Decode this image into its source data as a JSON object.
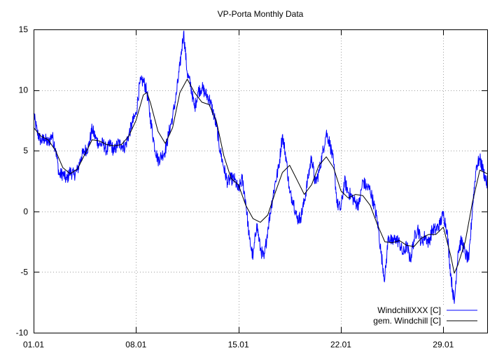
{
  "chart_data": {
    "type": "line",
    "title": "VP-Porta Monthly Data",
    "xlabel": "",
    "ylabel": "",
    "x_unit": "days since 01.01",
    "xlim": [
      0,
      31
    ],
    "ylim": [
      -10,
      15
    ],
    "x_ticks": [
      {
        "value": 0,
        "label": "01.01"
      },
      {
        "value": 7,
        "label": "08.01"
      },
      {
        "value": 14,
        "label": "15.01"
      },
      {
        "value": 21,
        "label": "22.01"
      },
      {
        "value": 28,
        "label": "29.01"
      }
    ],
    "y_ticks": [
      {
        "value": 15,
        "label": "15"
      },
      {
        "value": 10,
        "label": "10"
      },
      {
        "value": 5,
        "label": "5"
      },
      {
        "value": 0,
        "label": "0"
      },
      {
        "value": -5,
        "label": "-5"
      },
      {
        "value": -10,
        "label": "-10"
      }
    ],
    "grid": true,
    "legend_position": "bottom-right",
    "series": [
      {
        "name": "WindchillXXX [C]",
        "color": "#0000ff",
        "points": [
          [
            0,
            8.0
          ],
          [
            0.25,
            6.5
          ],
          [
            0.5,
            5.8
          ],
          [
            0.75,
            6.0
          ],
          [
            1.0,
            5.6
          ],
          [
            1.25,
            6.3
          ],
          [
            1.5,
            5.2
          ],
          [
            1.75,
            3.0
          ],
          [
            2.0,
            3.1
          ],
          [
            2.25,
            2.6
          ],
          [
            2.5,
            3.3
          ],
          [
            2.75,
            3.0
          ],
          [
            3.0,
            3.4
          ],
          [
            3.25,
            4.5
          ],
          [
            3.5,
            5.0
          ],
          [
            3.75,
            5.3
          ],
          [
            4.0,
            6.8
          ],
          [
            4.25,
            6.0
          ],
          [
            4.5,
            5.5
          ],
          [
            4.75,
            5.6
          ],
          [
            5.0,
            5.0
          ],
          [
            5.25,
            5.6
          ],
          [
            5.5,
            4.9
          ],
          [
            5.75,
            5.6
          ],
          [
            6.0,
            5.5
          ],
          [
            6.25,
            5.3
          ],
          [
            6.5,
            6.3
          ],
          [
            6.75,
            7.3
          ],
          [
            7.0,
            8.0
          ],
          [
            7.25,
            10.5
          ],
          [
            7.5,
            10.8
          ],
          [
            7.75,
            9.8
          ],
          [
            8.0,
            7.5
          ],
          [
            8.25,
            5.5
          ],
          [
            8.5,
            4.2
          ],
          [
            8.75,
            4.6
          ],
          [
            9.0,
            5.0
          ],
          [
            9.25,
            6.5
          ],
          [
            9.5,
            7.8
          ],
          [
            9.75,
            9.6
          ],
          [
            10.0,
            12.0
          ],
          [
            10.25,
            14.8
          ],
          [
            10.5,
            11.4
          ],
          [
            10.75,
            10.3
          ],
          [
            11.0,
            8.5
          ],
          [
            11.25,
            9.9
          ],
          [
            11.5,
            10.2
          ],
          [
            11.75,
            9.7
          ],
          [
            12.0,
            9.3
          ],
          [
            12.25,
            8.3
          ],
          [
            12.5,
            7.0
          ],
          [
            12.75,
            5.0
          ],
          [
            13.0,
            3.6
          ],
          [
            13.25,
            2.4
          ],
          [
            13.5,
            2.7
          ],
          [
            13.75,
            2.6
          ],
          [
            14.0,
            1.7
          ],
          [
            14.25,
            2.7
          ],
          [
            14.5,
            0.8
          ],
          [
            14.75,
            -2.3
          ],
          [
            15.0,
            -3.8
          ],
          [
            15.25,
            -1.0
          ],
          [
            15.5,
            -3.1
          ],
          [
            15.75,
            -3.9
          ],
          [
            16.0,
            -1.5
          ],
          [
            16.25,
            0.5
          ],
          [
            16.5,
            2.3
          ],
          [
            16.75,
            3.6
          ],
          [
            17.0,
            6.3
          ],
          [
            17.25,
            4.5
          ],
          [
            17.5,
            1.5
          ],
          [
            17.75,
            0.9
          ],
          [
            18.0,
            -0.6
          ],
          [
            18.25,
            -0.5
          ],
          [
            18.5,
            0.8
          ],
          [
            18.75,
            2.7
          ],
          [
            19.0,
            4.5
          ],
          [
            19.25,
            2.3
          ],
          [
            19.5,
            3.2
          ],
          [
            19.75,
            4.8
          ],
          [
            20.0,
            6.5
          ],
          [
            20.25,
            5.6
          ],
          [
            20.5,
            4.0
          ],
          [
            20.75,
            0.6
          ],
          [
            21.0,
            0.2
          ],
          [
            21.25,
            2.5
          ],
          [
            21.5,
            1.6
          ],
          [
            21.75,
            1.2
          ],
          [
            22.0,
            0.7
          ],
          [
            22.25,
            0.6
          ],
          [
            22.5,
            2.5
          ],
          [
            22.75,
            2.0
          ],
          [
            23.0,
            1.8
          ],
          [
            23.25,
            0.6
          ],
          [
            23.5,
            -0.8
          ],
          [
            23.75,
            -3.5
          ],
          [
            24.0,
            -5.6
          ],
          [
            24.25,
            -2.0
          ],
          [
            24.5,
            -2.6
          ],
          [
            24.75,
            -2.2
          ],
          [
            25.0,
            -2.6
          ],
          [
            25.25,
            -3.5
          ],
          [
            25.5,
            -2.8
          ],
          [
            25.75,
            -4.0
          ],
          [
            26.0,
            -2.3
          ],
          [
            26.25,
            -1.3
          ],
          [
            26.5,
            -2.6
          ],
          [
            26.75,
            -2.0
          ],
          [
            27.0,
            -2.6
          ],
          [
            27.25,
            -1.5
          ],
          [
            27.5,
            -1.5
          ],
          [
            27.75,
            -1.1
          ],
          [
            28.0,
            -0.2
          ],
          [
            28.25,
            -1.5
          ],
          [
            28.5,
            -5.1
          ],
          [
            28.75,
            -7.6
          ],
          [
            29.0,
            -3.3
          ],
          [
            29.25,
            -2.4
          ],
          [
            29.5,
            -3.5
          ],
          [
            29.75,
            -4.0
          ],
          [
            30.0,
            0.4
          ],
          [
            30.25,
            3.7
          ],
          [
            30.5,
            4.3
          ],
          [
            30.75,
            3.3
          ],
          [
            31.0,
            2.2
          ]
        ]
      },
      {
        "name": "gem. Windchill [C]",
        "color": "#000000",
        "points": [
          [
            0,
            6.9
          ],
          [
            0.5,
            6.2
          ],
          [
            1.0,
            5.9
          ],
          [
            1.5,
            5.0
          ],
          [
            2.0,
            3.6
          ],
          [
            2.5,
            3.1
          ],
          [
            3.0,
            3.5
          ],
          [
            3.5,
            4.7
          ],
          [
            4.0,
            5.9
          ],
          [
            4.5,
            5.8
          ],
          [
            5.0,
            5.5
          ],
          [
            5.5,
            5.4
          ],
          [
            6.0,
            5.5
          ],
          [
            6.5,
            6.2
          ],
          [
            7.0,
            7.5
          ],
          [
            7.5,
            9.6
          ],
          [
            7.75,
            9.8
          ],
          [
            8.0,
            8.9
          ],
          [
            8.5,
            6.6
          ],
          [
            9.0,
            5.6
          ],
          [
            9.5,
            6.9
          ],
          [
            10.0,
            9.8
          ],
          [
            10.5,
            10.9
          ],
          [
            11.0,
            9.8
          ],
          [
            11.5,
            9.0
          ],
          [
            12.0,
            8.8
          ],
          [
            12.5,
            7.4
          ],
          [
            13.0,
            4.6
          ],
          [
            13.5,
            2.7
          ],
          [
            14.0,
            2.2
          ],
          [
            14.5,
            0.5
          ],
          [
            15.0,
            -0.6
          ],
          [
            15.5,
            -0.9
          ],
          [
            16.0,
            -0.3
          ],
          [
            16.5,
            1.5
          ],
          [
            17.0,
            3.2
          ],
          [
            17.5,
            3.8
          ],
          [
            18.0,
            2.6
          ],
          [
            18.5,
            1.4
          ],
          [
            19.0,
            2.2
          ],
          [
            19.5,
            3.8
          ],
          [
            20.0,
            4.5
          ],
          [
            20.5,
            3.6
          ],
          [
            21.0,
            1.7
          ],
          [
            21.5,
            1.1
          ],
          [
            22.0,
            1.4
          ],
          [
            22.5,
            1.3
          ],
          [
            23.0,
            0.5
          ],
          [
            23.5,
            -1.1
          ],
          [
            24.0,
            -2.5
          ],
          [
            24.5,
            -2.6
          ],
          [
            25.0,
            -2.4
          ],
          [
            25.5,
            -2.8
          ],
          [
            26.0,
            -2.9
          ],
          [
            26.5,
            -2.2
          ],
          [
            27.0,
            -1.9
          ],
          [
            27.5,
            -1.9
          ],
          [
            28.0,
            -1.3
          ],
          [
            28.5,
            -3.6
          ],
          [
            28.75,
            -5.1
          ],
          [
            29.0,
            -4.4
          ],
          [
            29.5,
            -2.5
          ],
          [
            30.0,
            0.8
          ],
          [
            30.5,
            3.4
          ],
          [
            31.0,
            3.1
          ]
        ]
      }
    ]
  }
}
